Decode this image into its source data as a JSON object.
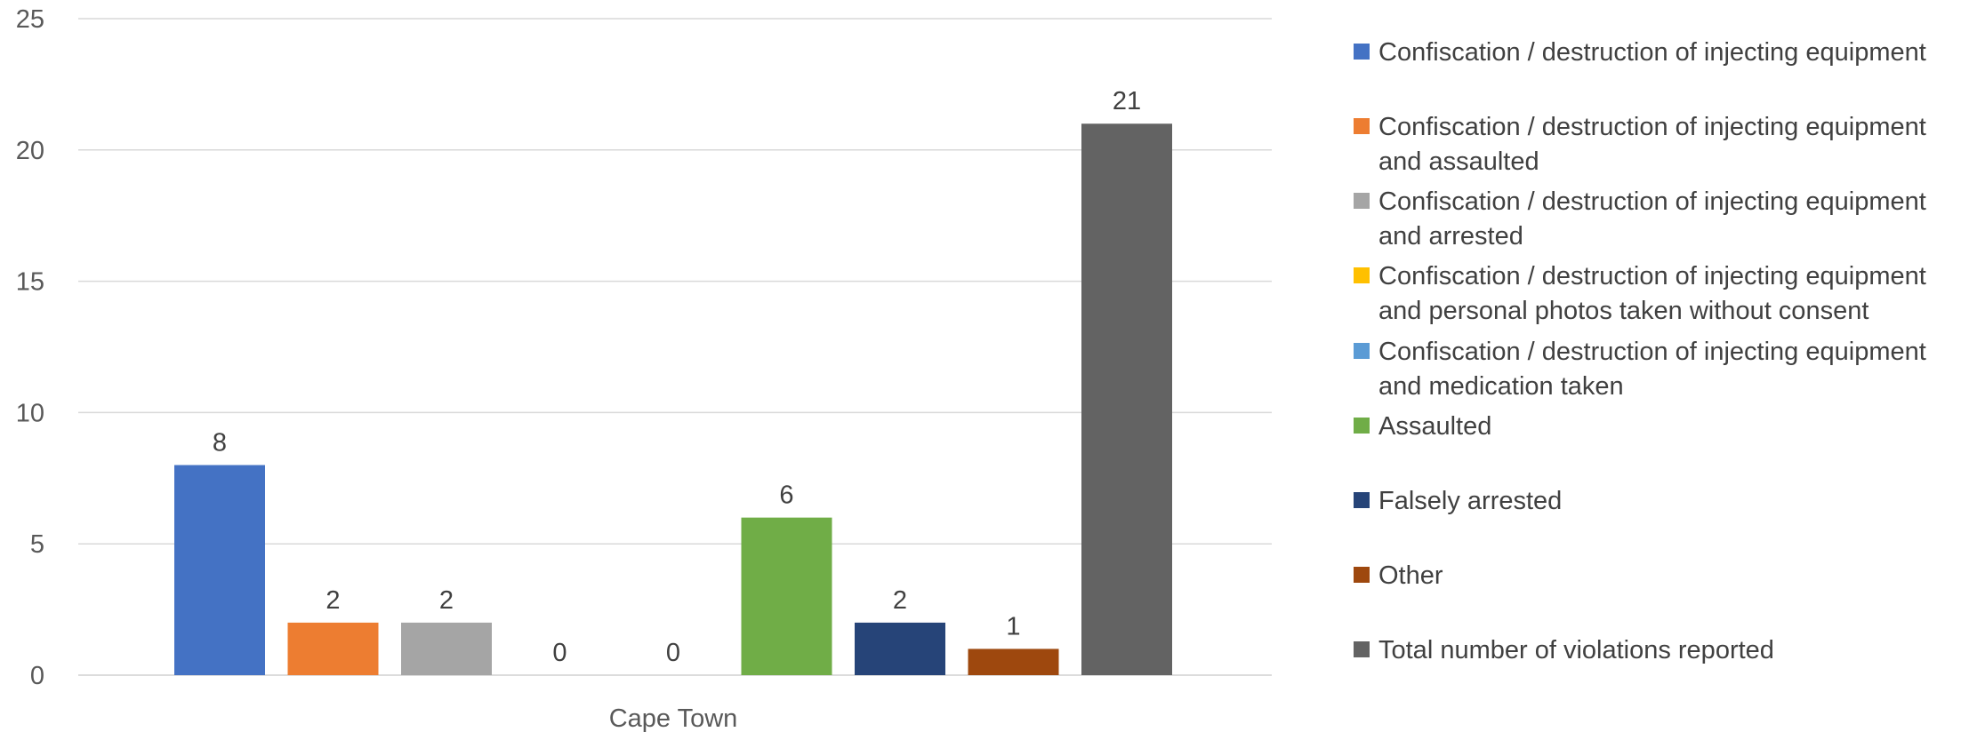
{
  "chart_data": {
    "type": "bar",
    "categories": [
      "Cape Town"
    ],
    "xlabel": "",
    "ylabel": "",
    "ylim": [
      0,
      25
    ],
    "yticks": [
      0,
      5,
      10,
      15,
      20,
      25
    ],
    "grid": true,
    "legend_position": "right",
    "show_data_labels": true,
    "series": [
      {
        "name": "Confiscation / destruction of injecting equipment",
        "color": "#4472C4",
        "values": [
          8
        ]
      },
      {
        "name": "Confiscation / destruction of injecting equipment and assaulted",
        "color": "#ED7D31",
        "values": [
          2
        ]
      },
      {
        "name": "Confiscation / destruction of injecting equipment and arrested",
        "color": "#A5A5A5",
        "values": [
          2
        ]
      },
      {
        "name": "Confiscation / destruction of injecting equipment and personal photos taken without consent",
        "color": "#FFC000",
        "values": [
          0
        ]
      },
      {
        "name": "Confiscation / destruction of injecting equipment and medication taken",
        "color": "#5B9BD5",
        "values": [
          0
        ]
      },
      {
        "name": "Assaulted",
        "color": "#70AD47",
        "values": [
          6
        ]
      },
      {
        "name": "Falsely arrested",
        "color": "#264478",
        "values": [
          2
        ]
      },
      {
        "name": "Other",
        "color": "#9E480E",
        "values": [
          1
        ]
      },
      {
        "name": "Total number of violations reported",
        "color": "#636363",
        "values": [
          21
        ]
      }
    ]
  }
}
